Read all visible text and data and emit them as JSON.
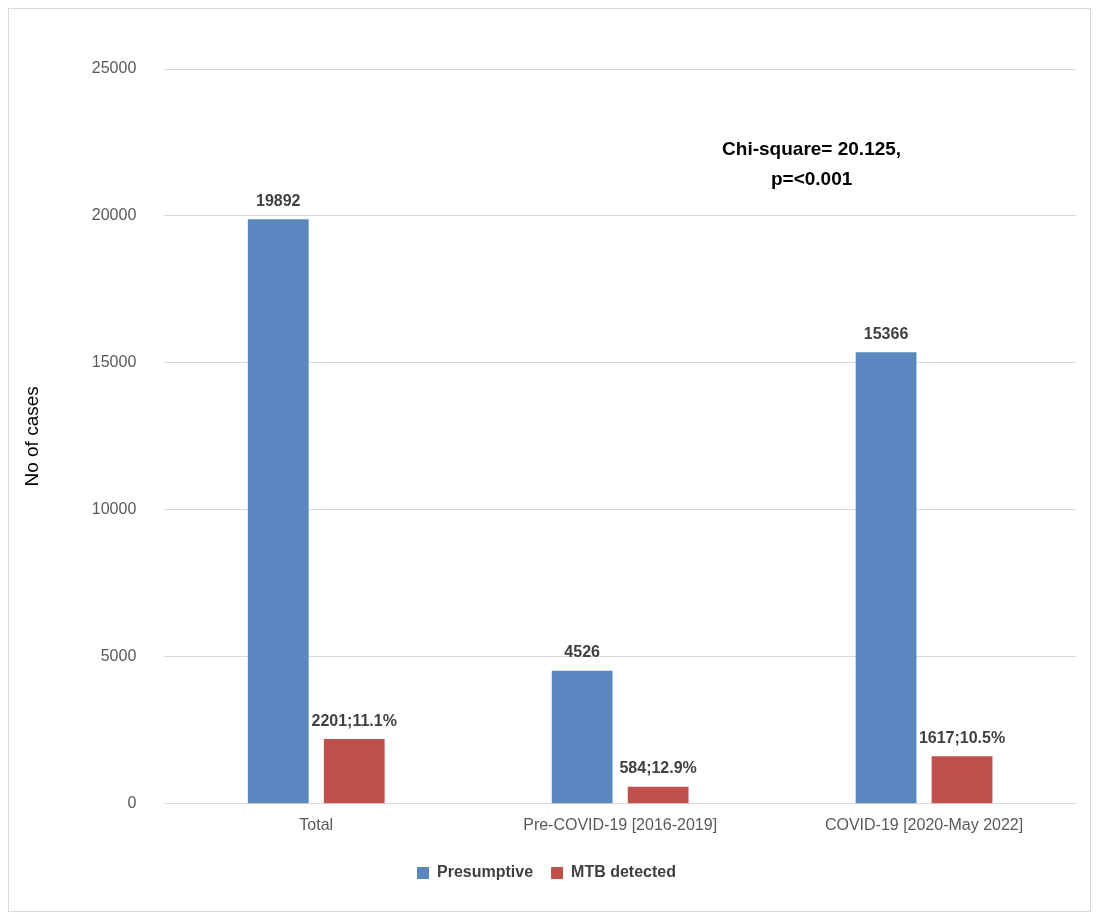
{
  "chart_data": {
    "type": "bar",
    "ylabel": "No of cases",
    "categories": [
      "Total",
      "Pre-COVID-19 [2016-2019]",
      "COVID-19 [2020-May 2022]"
    ],
    "series": [
      {
        "name": "Presumptive",
        "color": "#5b87c0",
        "values": [
          19892,
          4526,
          15366
        ],
        "value_labels": [
          "19892",
          "4526",
          "15366"
        ]
      },
      {
        "name": "MTB detected",
        "color": "#c0504d",
        "values": [
          2201,
          584,
          1617
        ],
        "value_labels": [
          "2201;11.1%",
          "584;12.9%",
          "1617;10.5%"
        ]
      }
    ],
    "ylim": [
      0,
      25000
    ],
    "yticks": [
      0,
      5000,
      10000,
      15000,
      20000,
      25000
    ],
    "grid": "y",
    "legend": "bottom",
    "annotations": [
      "Chi-square= 20.125,",
      "p=<0.001"
    ]
  }
}
